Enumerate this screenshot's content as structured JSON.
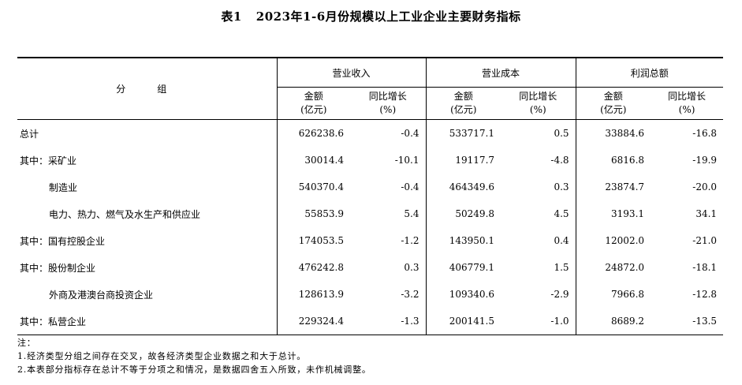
{
  "title": {
    "number": "表1",
    "text": "2023年1-6月份规模以上工业企业主要财务指标"
  },
  "header": {
    "group": "分　组",
    "columns": [
      {
        "label": "营业收入",
        "amount": "金额",
        "amount_unit": "(亿元)",
        "growth": "同比增长",
        "growth_unit": "(%)"
      },
      {
        "label": "营业成本",
        "amount": "金额",
        "amount_unit": "(亿元)",
        "growth": "同比增长",
        "growth_unit": "(%)"
      },
      {
        "label": "利润总额",
        "amount": "金额",
        "amount_unit": "(亿元)",
        "growth": "同比增长",
        "growth_unit": "(%)"
      }
    ]
  },
  "rows": [
    {
      "label": "总计",
      "indent": false,
      "values": [
        "626238.6",
        "-0.4",
        "533717.1",
        "0.5",
        "33884.6",
        "-16.8"
      ]
    },
    {
      "label": "其中：采矿业",
      "indent": false,
      "values": [
        "30014.4",
        "-10.1",
        "19117.7",
        "-4.8",
        "6816.8",
        "-19.9"
      ]
    },
    {
      "label": "制造业",
      "indent": true,
      "values": [
        "540370.4",
        "-0.4",
        "464349.6",
        "0.3",
        "23874.7",
        "-20.0"
      ]
    },
    {
      "label": "电力、热力、燃气及水生产和供应业",
      "indent": true,
      "values": [
        "55853.9",
        "5.4",
        "50249.8",
        "4.5",
        "3193.1",
        "34.1"
      ]
    },
    {
      "label": "其中：国有控股企业",
      "indent": false,
      "values": [
        "174053.5",
        "-1.2",
        "143950.1",
        "0.4",
        "12002.0",
        "-21.0"
      ]
    },
    {
      "label": "其中：股份制企业",
      "indent": false,
      "values": [
        "476242.8",
        "0.3",
        "406779.1",
        "1.5",
        "24872.0",
        "-18.1"
      ]
    },
    {
      "label": "外商及港澳台商投资企业",
      "indent": true,
      "values": [
        "128613.9",
        "-3.2",
        "109340.6",
        "-2.9",
        "7966.8",
        "-12.8"
      ]
    },
    {
      "label": "其中：私营企业",
      "indent": false,
      "values": [
        "229324.4",
        "-1.3",
        "200141.5",
        "-1.0",
        "8689.2",
        "-13.5"
      ]
    }
  ],
  "notes": {
    "heading": "注：",
    "items": [
      "1.经济类型分组之间存在交叉，故各经济类型企业数据之和大于总计。",
      "2.本表部分指标存在总计不等于分项之和情况，是数据四舍五入所致，未作机械调整。"
    ]
  }
}
